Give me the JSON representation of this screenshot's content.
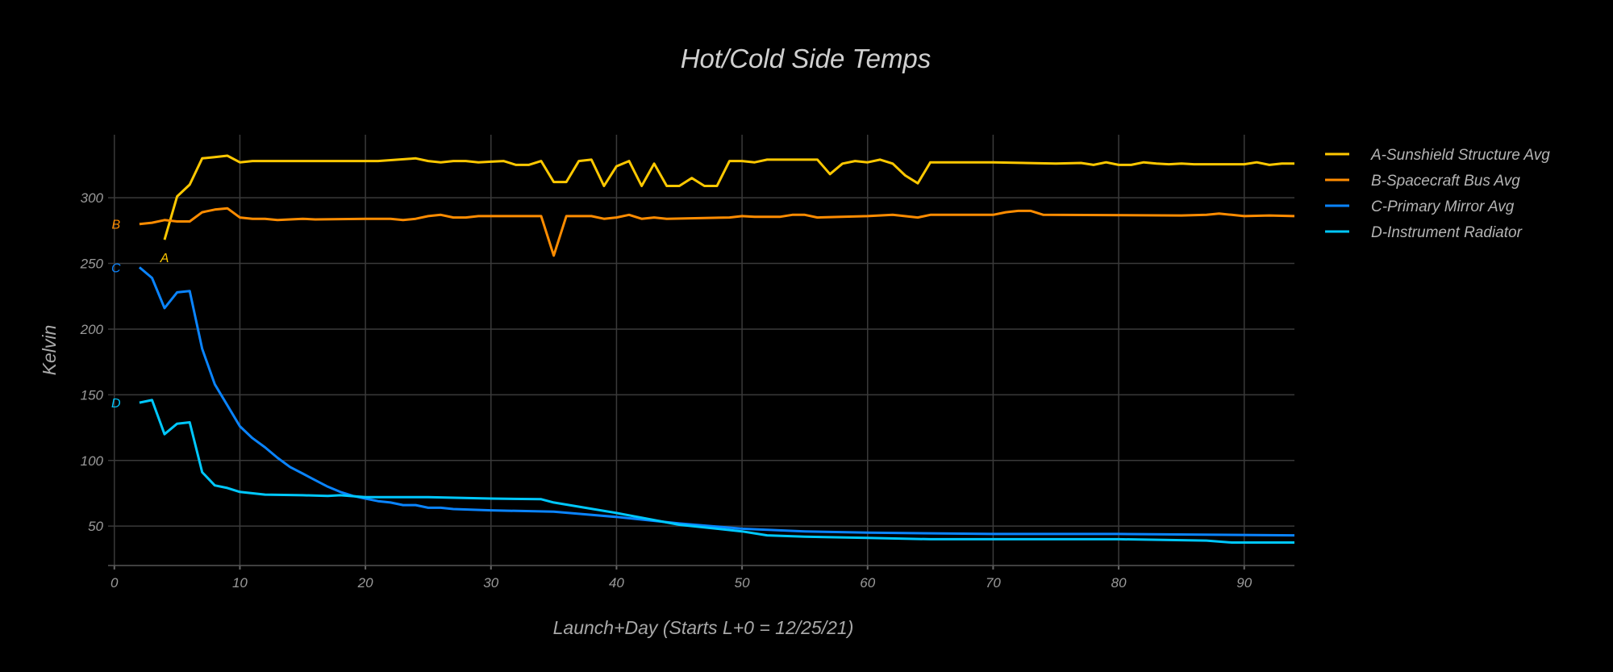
{
  "chart_data": {
    "type": "line",
    "title": "Hot/Cold Side Temps",
    "xlabel": "Launch+Day (Starts L+0 = 12/25/21)",
    "ylabel": "Kelvin",
    "xlim": [
      -0.5,
      94
    ],
    "ylim": [
      20,
      348
    ],
    "grid": true,
    "legend_position": "top-right",
    "xticks": [
      0,
      10,
      20,
      30,
      40,
      50,
      60,
      70,
      80,
      90
    ],
    "yticks": [
      50,
      100,
      150,
      200,
      250,
      300
    ],
    "series": [
      {
        "name": "A-Sunshield Structure Avg",
        "label": "A",
        "color": "#FFC800",
        "x": [
          4,
          5,
          6,
          7,
          8,
          9,
          10,
          11,
          20,
          21,
          24,
          25,
          26,
          27,
          28,
          29,
          30,
          31,
          32,
          33,
          34,
          35,
          36,
          37,
          38,
          39,
          40,
          41,
          42,
          43,
          44,
          45,
          46,
          47,
          48,
          49,
          50,
          51,
          52,
          56,
          57,
          58,
          59,
          60,
          61,
          62,
          63,
          64,
          65,
          70,
          75,
          77,
          78,
          79,
          80,
          81,
          82,
          83,
          84,
          85,
          86,
          90,
          91,
          92,
          93,
          94
        ],
        "y": [
          268,
          301,
          310,
          330,
          331,
          332,
          327,
          328,
          328,
          328,
          330,
          328,
          327,
          328,
          328,
          327,
          327.5,
          328,
          325,
          325,
          328,
          312,
          312,
          328,
          329,
          309,
          324,
          328,
          309,
          326,
          309,
          309,
          315,
          309,
          309,
          328,
          328,
          327,
          329,
          329,
          318,
          326,
          328,
          327,
          329,
          326,
          317,
          311,
          327,
          327,
          326,
          326.5,
          325,
          327,
          325,
          325,
          327,
          326,
          325.5,
          326,
          325.5,
          325.5,
          327,
          325,
          326,
          326
        ]
      },
      {
        "name": "B-Spacecraft Bus Avg",
        "label": "B",
        "color": "#FF8C00",
        "x": [
          2,
          3,
          4,
          5,
          6,
          7,
          8,
          9,
          10,
          11,
          12,
          13,
          15,
          16,
          20,
          22,
          23,
          24,
          25,
          26,
          27,
          28,
          29,
          34,
          35,
          36,
          37,
          38,
          39,
          40,
          41,
          42,
          43,
          44,
          49,
          50,
          51,
          53,
          54,
          55,
          56,
          60,
          62,
          64,
          65,
          70,
          71,
          72,
          73,
          74,
          85,
          87,
          88,
          89,
          90,
          92,
          94
        ],
        "y": [
          280,
          281,
          283,
          282,
          282,
          289,
          291,
          292,
          285,
          284,
          284,
          283,
          284,
          283.5,
          284,
          284,
          283,
          284,
          286,
          287,
          285,
          285,
          286,
          286,
          256,
          286,
          286,
          286,
          284,
          285,
          287,
          284,
          285,
          284,
          285,
          286,
          285.5,
          285.5,
          287,
          287,
          285,
          286,
          287,
          285,
          287,
          287,
          289,
          290,
          290,
          287,
          286.5,
          287,
          288,
          287,
          286,
          286.5,
          286
        ]
      },
      {
        "name": "C-Primary Mirror Avg",
        "label": "C",
        "color": "#0A84FF",
        "x": [
          2,
          3,
          4,
          5,
          6,
          7,
          8,
          9,
          10,
          11,
          12,
          13,
          14,
          15,
          16,
          17,
          18,
          19,
          20,
          21,
          22,
          23,
          24,
          25,
          26,
          27,
          30,
          35,
          40,
          45,
          50,
          55,
          60,
          70,
          80,
          94
        ],
        "y": [
          247,
          239,
          216,
          228,
          229,
          185,
          158,
          142,
          126,
          117,
          110,
          102,
          95,
          90,
          85,
          80,
          76,
          73,
          71,
          69,
          68,
          66,
          66,
          64,
          64,
          63,
          62,
          61,
          57,
          52,
          48,
          46,
          45,
          44,
          44,
          43
        ]
      },
      {
        "name": "D-Instrument Radiator",
        "label": "D",
        "color": "#00C8FF",
        "x": [
          2,
          3,
          4,
          5,
          6,
          7,
          8,
          9,
          10,
          12,
          15,
          17,
          18,
          20,
          25,
          30,
          34,
          35,
          40,
          45,
          50,
          52,
          55,
          60,
          65,
          70,
          80,
          87,
          89,
          94
        ],
        "y": [
          144,
          146,
          120,
          128,
          129,
          91,
          81,
          79,
          76,
          74,
          73.5,
          73,
          73.5,
          72,
          72,
          71,
          70.5,
          68,
          60,
          51,
          46,
          43,
          42,
          41,
          40,
          40,
          40,
          39,
          37.5,
          37.5
        ]
      }
    ]
  }
}
